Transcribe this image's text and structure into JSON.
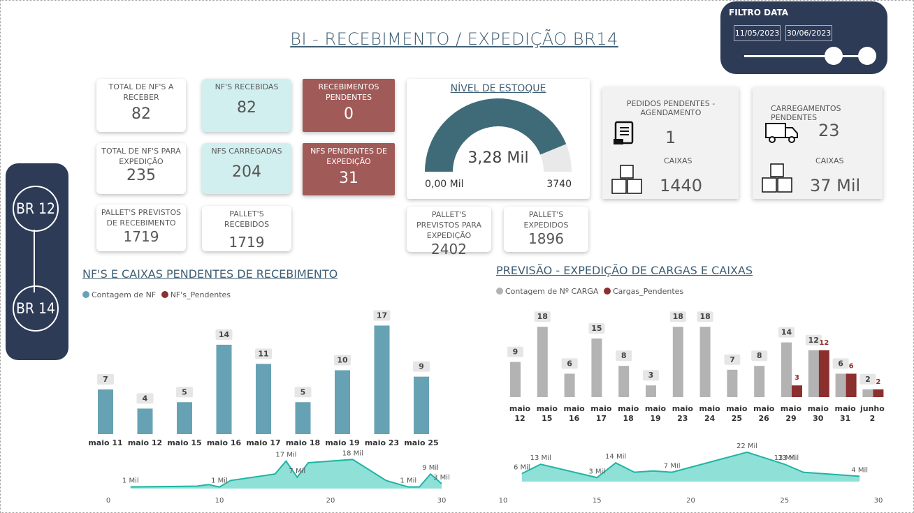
{
  "title": "BI -  RECEBIMENTO / EXPEDIÇÃO BR14",
  "filter": {
    "title": "FILTRO DATA",
    "start": "11/05/2023",
    "end": "30/06/2023"
  },
  "nav": {
    "btn1": "BR 12",
    "btn2": "BR 14"
  },
  "cards": {
    "total_receber": {
      "label": "TOTAL DE NF'S A RECEBER",
      "value": "82"
    },
    "nfs_recebidas": {
      "label": "NF'S RECEBIDAS",
      "value": "82"
    },
    "receb_pendentes": {
      "label": "RECEBIMENTOS PENDENTES",
      "value": "0"
    },
    "total_expedicao": {
      "label": "TOTAL DE NF'S PARA EXPEDIÇÃO",
      "value": "235"
    },
    "nfs_carregadas": {
      "label": "NFS CARREGADAS",
      "value": "204"
    },
    "nfs_pend_exp": {
      "label": "NFS PENDENTES DE EXPEDIÇÃO",
      "value": "31"
    },
    "pallet_prev_receb": {
      "label": "PALLET'S PREVISTOS DE RECEBIMENTO",
      "value": "1719"
    },
    "pallet_recebidos": {
      "label": "PALLET'S RECEBIDOS",
      "value": "1719"
    },
    "pallet_prev_exp": {
      "label": "PALLET'S PREVISTOS PARA EXPEDIÇÃO",
      "value": "2402"
    },
    "pallet_expedidos": {
      "label": "PALLET'S EXPEDIDOS",
      "value": "1896"
    }
  },
  "gauge": {
    "title": "NÍVEL DE ESTOQUE",
    "value_label": "3,28 Mil",
    "min": "0,00 Mil",
    "max": "3740",
    "value": 3280,
    "max_value": 3740
  },
  "pedidos": {
    "label": "PEDIDOS PENDENTES - AGENDAMENTO",
    "value": "1",
    "caixas_label": "CAIXAS",
    "caixas": "1440"
  },
  "carregamentos": {
    "label": "CARREGAMENTOS PENDENTES",
    "value": "23",
    "caixas_label": "CAIXAS",
    "caixas": "37 Mil"
  },
  "colors": {
    "navy": "#2d3b57",
    "teal_bar": "#66a2b4",
    "gray_bar": "#b3b3b3",
    "dark_red": "#8c2f2f",
    "area": "#8fe0d6",
    "area_line": "#1fb5a3",
    "gauge": "#3f6b78",
    "red_card": "#a05a58"
  },
  "section_left": {
    "title": "NF'S  E CAIXAS PENDENTES DE RECEBIMENTO",
    "legend": [
      "Contagem de NF",
      "NF's_Pendentes"
    ]
  },
  "section_right": {
    "title": "PREVISÃO  - EXPEDIÇÃO DE CARGAS E CAIXAS",
    "legend": [
      "Contagem de Nº CARGA",
      "Cargas_Pendentes"
    ]
  },
  "chart_data": [
    {
      "type": "bar",
      "categories": [
        "maio 11",
        "maio 12",
        "maio 15",
        "maio 16",
        "maio 17",
        "maio 18",
        "maio 19",
        "maio 23",
        "maio 25"
      ],
      "series": [
        {
          "name": "Contagem de NF",
          "values": [
            7,
            4,
            5,
            14,
            11,
            5,
            10,
            17,
            9
          ]
        }
      ]
    },
    {
      "type": "bar",
      "categories": [
        "maio 12",
        "maio 15",
        "maio 16",
        "maio 17",
        "maio 18",
        "maio 19",
        "maio 23",
        "maio 24",
        "maio 25",
        "maio 26",
        "maio 29",
        "maio 30",
        "maio 31",
        "junho 2"
      ],
      "series": [
        {
          "name": "Contagem de Nº CARGA",
          "values": [
            9,
            18,
            6,
            15,
            8,
            3,
            18,
            18,
            7,
            8,
            14,
            12,
            6,
            2
          ]
        },
        {
          "name": "Cargas_Pendentes",
          "values": [
            null,
            null,
            null,
            null,
            null,
            null,
            null,
            null,
            null,
            null,
            3,
            12,
            6,
            2
          ]
        }
      ]
    },
    {
      "type": "area",
      "xlim": [
        0,
        30
      ],
      "xticks": [
        "0",
        "10",
        "20",
        "30"
      ],
      "points": [
        [
          2,
          1000
        ],
        [
          8,
          1500
        ],
        [
          9,
          2500
        ],
        [
          10,
          1000
        ],
        [
          11,
          5000
        ],
        [
          15,
          9000
        ],
        [
          16,
          17000
        ],
        [
          17,
          7000
        ],
        [
          18,
          16000
        ],
        [
          22,
          18000
        ],
        [
          25,
          5000
        ],
        [
          27,
          1000
        ],
        [
          28,
          1000
        ],
        [
          29,
          9000
        ],
        [
          30,
          3000
        ]
      ],
      "labels": [
        {
          "x": 2,
          "text": "1 Mil"
        },
        {
          "x": 10,
          "text": "1 Mil"
        },
        {
          "x": 16,
          "text": "17 Mil"
        },
        {
          "x": 17,
          "text": "7 Mil"
        },
        {
          "x": 22,
          "text": "18 Mil"
        },
        {
          "x": 27,
          "text": "1 Mil"
        },
        {
          "x": 29,
          "text": "9 Mil"
        },
        {
          "x": 30,
          "text": "3 Mil"
        }
      ]
    },
    {
      "type": "area",
      "xlim": [
        10,
        30
      ],
      "xticks": [
        "10",
        "15",
        "20",
        "25",
        "30"
      ],
      "points": [
        [
          11,
          6000
        ],
        [
          12,
          13000
        ],
        [
          15,
          3000
        ],
        [
          16,
          14000
        ],
        [
          17,
          7000
        ],
        [
          18,
          8000
        ],
        [
          19,
          7000
        ],
        [
          23,
          22000
        ],
        [
          25,
          13000
        ],
        [
          26,
          7000
        ],
        [
          29,
          4000
        ]
      ],
      "labels": [
        {
          "x": 11,
          "text": "6 Mil"
        },
        {
          "x": 12,
          "text": "13 Mil"
        },
        {
          "x": 15,
          "text": "3 Mil"
        },
        {
          "x": 16,
          "text": "14 Mil"
        },
        {
          "x": 19,
          "text": "7 Mil"
        },
        {
          "x": 23,
          "text": "22 Mil"
        },
        {
          "x": 25,
          "text": "13 Mil"
        },
        {
          "x": 25.2,
          "text": "13 Mil"
        },
        {
          "x": 29,
          "text": "4 Mil"
        }
      ]
    }
  ]
}
